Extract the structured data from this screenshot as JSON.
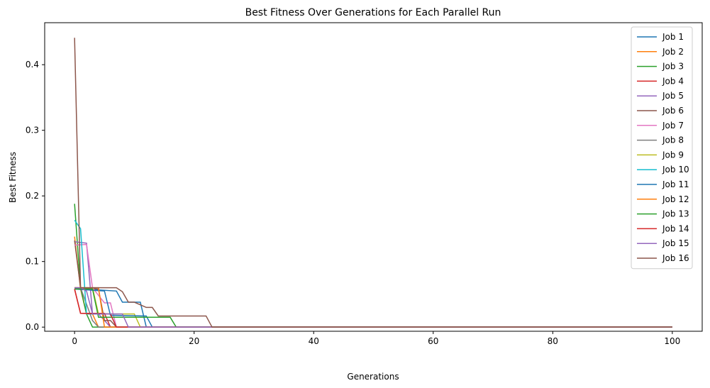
{
  "chart_data": {
    "type": "line",
    "title": "Best Fitness Over Generations for Each Parallel Run",
    "x_label": "Generations",
    "y_label": "Best Fitness",
    "xlim": [
      -5,
      105
    ],
    "ylim": [
      -0.0063,
      0.464
    ],
    "xticks": [
      0,
      20,
      40,
      60,
      80,
      100
    ],
    "yticks": [
      {
        "value": 0,
        "label": "0.0"
      },
      {
        "value": 0.1,
        "label": "0.1"
      },
      {
        "value": 0.2,
        "label": "0.2"
      },
      {
        "value": 0.3,
        "label": "0.3"
      },
      {
        "value": 0.4,
        "label": "0.4"
      }
    ],
    "legend": "upper right",
    "series": [
      {
        "name": "Job 1",
        "color": "#1f77b4",
        "x": [
          0,
          7,
          8,
          11,
          12,
          100
        ],
        "values": [
          0.059,
          0.055,
          0.038,
          0.038,
          0,
          0
        ]
      },
      {
        "name": "Job 2",
        "color": "#ff7f0e",
        "x": [
          0,
          1,
          2,
          3,
          4,
          100
        ],
        "values": [
          0.138,
          0.058,
          0.02,
          0.02,
          0,
          0
        ]
      },
      {
        "name": "Job 3",
        "color": "#2ca02c",
        "x": [
          0,
          1,
          2,
          3,
          100
        ],
        "values": [
          0.188,
          0.06,
          0.02,
          0,
          0
        ]
      },
      {
        "name": "Job 4",
        "color": "#d62728",
        "x": [
          0,
          1,
          5,
          6,
          100
        ],
        "values": [
          0.058,
          0.021,
          0.021,
          0,
          0
        ]
      },
      {
        "name": "Job 5",
        "color": "#9467bd",
        "x": [
          0,
          2,
          3,
          4,
          5,
          6,
          100
        ],
        "values": [
          0.13,
          0.128,
          0.02,
          0.02,
          0.01,
          0,
          0
        ]
      },
      {
        "name": "Job 6",
        "color": "#8c564b",
        "x": [
          0,
          1,
          4,
          5,
          6,
          7,
          100
        ],
        "values": [
          0.132,
          0.06,
          0.058,
          0.01,
          0.01,
          0,
          0
        ]
      },
      {
        "name": "Job 7",
        "color": "#e377c2",
        "x": [
          0,
          2,
          3,
          5,
          6,
          7,
          100
        ],
        "values": [
          0.125,
          0.126,
          0.06,
          0.037,
          0.037,
          0,
          0
        ]
      },
      {
        "name": "Job 8",
        "color": "#7f7f7f",
        "x": [
          0,
          1,
          3,
          4,
          100
        ],
        "values": [
          0.06,
          0.06,
          0.01,
          0,
          0
        ]
      },
      {
        "name": "Job 9",
        "color": "#bcbd22",
        "x": [
          0,
          3,
          4,
          10,
          11,
          100
        ],
        "values": [
          0.06,
          0.06,
          0.02,
          0.02,
          0,
          0
        ]
      },
      {
        "name": "Job 10",
        "color": "#17becf",
        "x": [
          0,
          1,
          2,
          6,
          7,
          100
        ],
        "values": [
          0.163,
          0.15,
          0.02,
          0.02,
          0,
          0
        ]
      },
      {
        "name": "Job 11",
        "color": "#1f77b4",
        "x": [
          0,
          5,
          6,
          12,
          13,
          100
        ],
        "values": [
          0.058,
          0.055,
          0.018,
          0.017,
          0,
          0
        ]
      },
      {
        "name": "Job 12",
        "color": "#ff7f0e",
        "x": [
          0,
          4,
          5,
          100
        ],
        "values": [
          0.06,
          0.06,
          0,
          0
        ]
      },
      {
        "name": "Job 13",
        "color": "#2ca02c",
        "x": [
          0,
          3,
          4,
          16,
          17,
          100
        ],
        "values": [
          0.058,
          0.058,
          0.015,
          0.015,
          0,
          0
        ]
      },
      {
        "name": "Job 14",
        "color": "#d62728",
        "x": [
          0,
          1,
          6,
          7,
          100
        ],
        "values": [
          0.058,
          0.021,
          0.02,
          0,
          0
        ]
      },
      {
        "name": "Job 15",
        "color": "#9467bd",
        "x": [
          0,
          1,
          2,
          3,
          8,
          9,
          100
        ],
        "values": [
          0.06,
          0.06,
          0.055,
          0.02,
          0.02,
          0,
          0
        ]
      },
      {
        "name": "Job 16",
        "color": "#8c564b",
        "x": [
          0,
          1,
          2,
          7,
          8,
          9,
          10,
          12,
          13,
          14,
          15,
          22,
          23,
          100
        ],
        "values": [
          0.441,
          0.06,
          0.06,
          0.06,
          0.054,
          0.038,
          0.038,
          0.03,
          0.03,
          0.017,
          0.017,
          0.017,
          0,
          0
        ]
      }
    ]
  }
}
